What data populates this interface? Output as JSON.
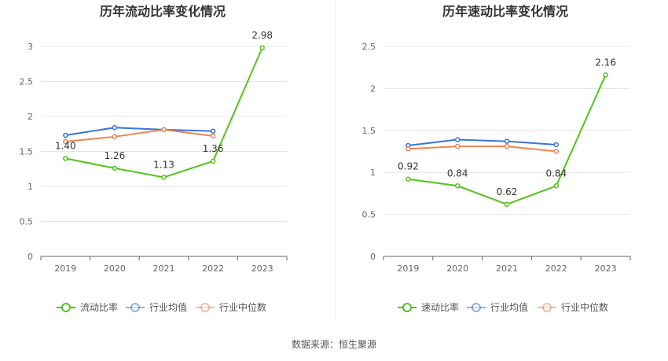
{
  "source": "数据来源：恒生聚源",
  "chart_data": [
    {
      "type": "line",
      "title": "历年流动比率变化情况",
      "categories": [
        "2019",
        "2020",
        "2021",
        "2022",
        "2023"
      ],
      "ylim": [
        0,
        3
      ],
      "yticks": [
        "0",
        "0.5",
        "1",
        "1.5",
        "2",
        "2.5",
        "3"
      ],
      "grid": true,
      "legend_position": "bottom",
      "series": [
        {
          "name": "流动比率",
          "color": "#52c41a",
          "values": [
            1.4,
            1.26,
            1.13,
            1.36,
            2.98
          ],
          "labels": [
            "1.40",
            "1.26",
            "1.13",
            "1.36",
            "2.98"
          ]
        },
        {
          "name": "行业均值",
          "color": "#3a74d8",
          "values": [
            1.73,
            1.84,
            1.81,
            1.79,
            null
          ]
        },
        {
          "name": "行业中位数",
          "color": "#ee8455",
          "values": [
            1.64,
            1.71,
            1.81,
            1.72,
            null
          ]
        }
      ]
    },
    {
      "type": "line",
      "title": "历年速动比率变化情况",
      "categories": [
        "2019",
        "2020",
        "2021",
        "2022",
        "2023"
      ],
      "ylim": [
        0,
        2.5
      ],
      "yticks": [
        "0",
        "0.5",
        "1",
        "1.5",
        "2",
        "2.5"
      ],
      "grid": true,
      "legend_position": "bottom",
      "series": [
        {
          "name": "速动比率",
          "color": "#52c41a",
          "values": [
            0.92,
            0.84,
            0.62,
            0.84,
            2.16
          ],
          "labels": [
            "0.92",
            "0.84",
            "0.62",
            "0.84",
            "2.16"
          ]
        },
        {
          "name": "行业均值",
          "color": "#3a74d8",
          "values": [
            1.32,
            1.39,
            1.37,
            1.33,
            null
          ]
        },
        {
          "name": "行业中位数",
          "color": "#ee8455",
          "values": [
            1.28,
            1.31,
            1.31,
            1.25,
            null
          ]
        }
      ]
    }
  ]
}
